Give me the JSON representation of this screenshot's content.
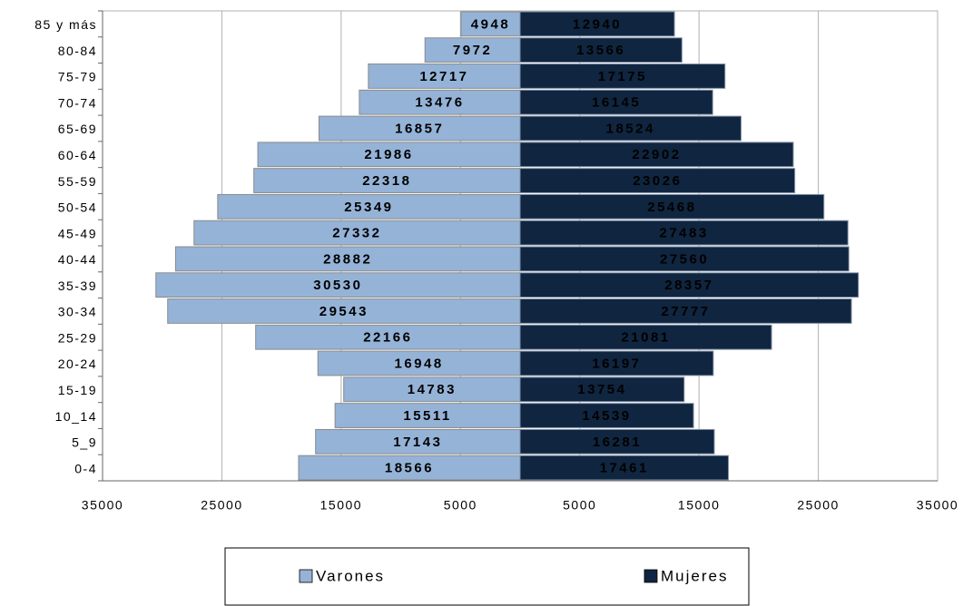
{
  "chart_data": {
    "type": "pyramid",
    "categories": [
      "85 y más",
      "80-84",
      "75-79",
      "70-74",
      "65-69",
      "60-64",
      "55-59",
      "50-54",
      "45-49",
      "40-44",
      "35-39",
      "30-34",
      "25-29",
      "20-24",
      "15-19",
      "10_14",
      "5_9",
      "0-4"
    ],
    "series": [
      {
        "name": "Varones",
        "color": "#95b3d7",
        "side": "left",
        "values": [
          4948,
          7972,
          12717,
          13476,
          16857,
          21986,
          22318,
          25349,
          27332,
          28882,
          30530,
          29543,
          22166,
          16948,
          14783,
          15511,
          17143,
          18566
        ]
      },
      {
        "name": "Mujeres",
        "color": "#10253f",
        "side": "right",
        "values": [
          12940,
          13566,
          17175,
          16145,
          18524,
          22902,
          23026,
          25468,
          27483,
          27560,
          28357,
          27777,
          21081,
          16197,
          13754,
          14539,
          16281,
          17461
        ]
      }
    ],
    "xlim": [
      -35000,
      35000
    ],
    "xticks": [
      {
        "value": -35000,
        "label": "35000"
      },
      {
        "value": -25000,
        "label": "25000"
      },
      {
        "value": -15000,
        "label": "15000"
      },
      {
        "value": -5000,
        "label": "5000"
      },
      5000,
      15000,
      25000,
      35000
    ],
    "grid": true,
    "legend": "bottom"
  }
}
